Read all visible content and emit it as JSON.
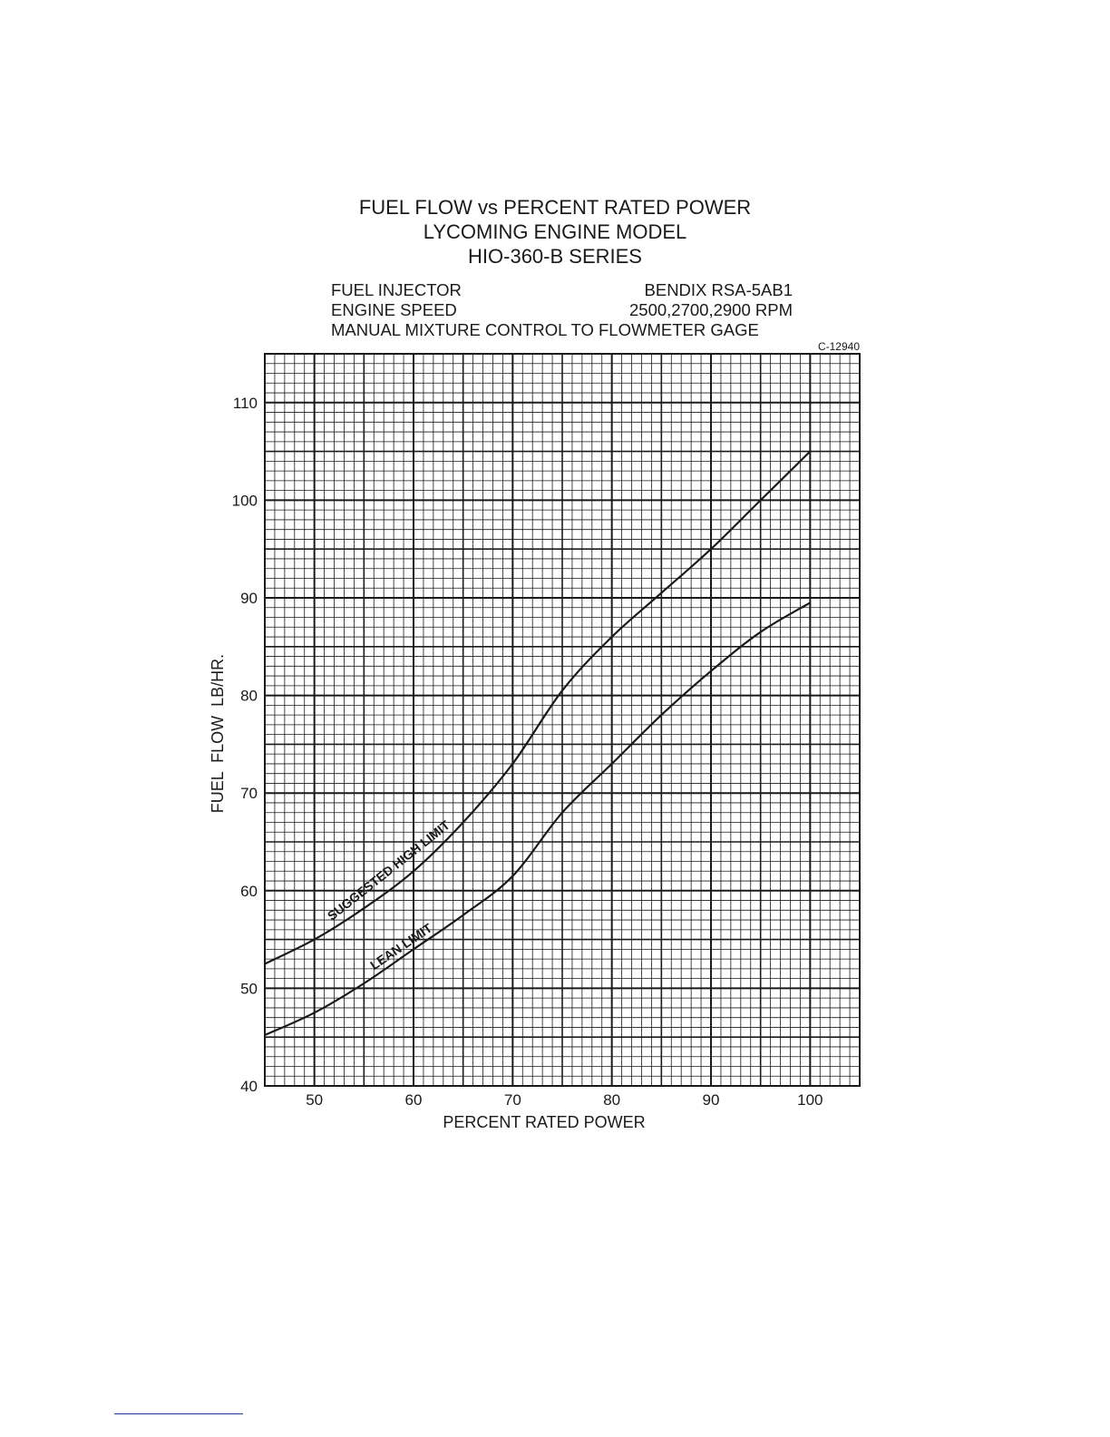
{
  "header": {
    "title_lines": [
      "FUEL FLOW vs PERCENT RATED POWER",
      "LYCOMING ENGINE MODEL",
      "HIO-360-B SERIES"
    ],
    "specs": {
      "fuel_injector_label": "FUEL INJECTOR",
      "fuel_injector_value": "BENDIX RSA-5AB1",
      "engine_speed_label": "ENGINE SPEED",
      "engine_speed_value": "2500,2700,2900 RPM",
      "mixture_note": "MANUAL MIXTURE CONTROL TO FLOWMETER GAGE"
    },
    "drawing_code": "C-12940"
  },
  "colors": {
    "line": "#1a1a1a",
    "grid": "#1a1a1a",
    "footer_rule": "#1f3f99"
  },
  "chart_data": {
    "type": "line",
    "title": "FUEL FLOW vs PERCENT RATED POWER",
    "xlabel": "PERCENT RATED  POWER",
    "ylabel": "FUEL  FLOW  LB/HR.",
    "xlim": [
      45,
      105
    ],
    "ylim": [
      40,
      115
    ],
    "x_ticks": [
      50,
      60,
      70,
      80,
      90,
      100
    ],
    "y_ticks": [
      40,
      50,
      60,
      70,
      80,
      90,
      100,
      110
    ],
    "grid": true,
    "grid_minor_x": 1,
    "grid_minor_y": 1,
    "series": [
      {
        "name": "SUGGESTED HIGH LIMIT",
        "x": [
          45,
          50,
          55,
          60,
          65,
          70,
          75,
          80,
          85,
          90,
          95,
          100
        ],
        "y": [
          52.5,
          55,
          58.2,
          62,
          67,
          73,
          80.5,
          86,
          90.5,
          95,
          100,
          105
        ]
      },
      {
        "name": "LEAN LIMIT",
        "x": [
          45,
          50,
          55,
          60,
          65,
          70,
          75,
          80,
          85,
          90,
          95,
          100
        ],
        "y": [
          45.2,
          47.5,
          50.5,
          54,
          57.5,
          61.5,
          68,
          73,
          78,
          82.5,
          86.5,
          89.5
        ]
      }
    ]
  }
}
